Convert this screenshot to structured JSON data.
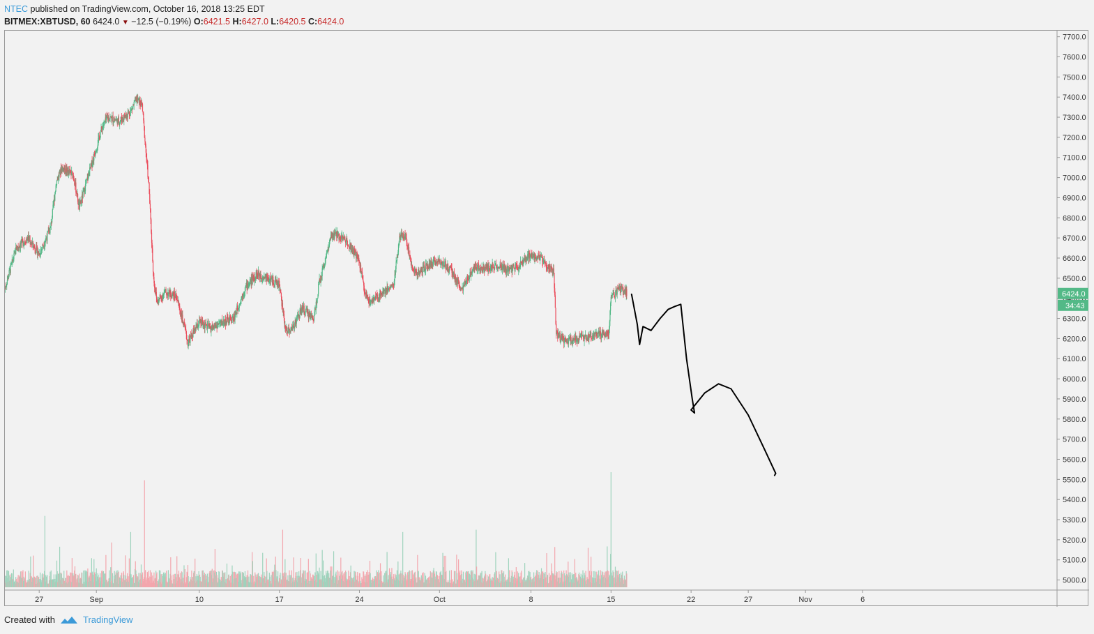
{
  "header": {
    "author": "NTEC",
    "published_text": "published on TradingView.com, October 16, 2018 13:25 EDT",
    "symbol": "BITMEX:XBTUSD, 60",
    "last": "6424.0",
    "change": "−12.5 (−0.19%)",
    "o_label": "O:",
    "o_value": "6421.5",
    "h_label": "H:",
    "h_value": "6427.0",
    "l_label": "L:",
    "l_value": "6420.5",
    "c_label": "C:",
    "c_value": "6424.0"
  },
  "footer": {
    "created_with": "Created with",
    "brand": "TradingView"
  },
  "colors": {
    "up": "#53b987",
    "down": "#eb4d5c",
    "volume_up": "#9fd3bd",
    "volume_down": "#f3a6ad",
    "price_badge": "#53b987",
    "drawing": "#000000"
  },
  "chart_data": {
    "type": "candlestick",
    "symbol": "BITMEX:XBTUSD",
    "interval": "60",
    "ylim": [
      4950,
      7730
    ],
    "y_ticks": [
      "7700.0",
      "7600.0",
      "7500.0",
      "7400.0",
      "7300.0",
      "7200.0",
      "7100.0",
      "7000.0",
      "6900.0",
      "6800.0",
      "6700.0",
      "6600.0",
      "6500.0",
      "6400.0",
      "6300.0",
      "6200.0",
      "6100.0",
      "6000.0",
      "5900.0",
      "5800.0",
      "5700.0",
      "5600.0",
      "5500.0",
      "5400.0",
      "5300.0",
      "5200.0",
      "5100.0",
      "5000.0"
    ],
    "x_tick_labels": [
      "27",
      "Sep",
      "10",
      "17",
      "24",
      "Oct",
      "8",
      "15",
      "22",
      "27",
      "Nov",
      "6"
    ],
    "x_tick_days": [
      -5,
      0,
      9,
      16,
      23,
      30,
      38,
      45,
      52,
      57,
      62,
      67
    ],
    "x_range_days": [
      -8,
      84
    ],
    "last_price_label": "6424.0",
    "countdown_label": "34:43",
    "price_path": [
      {
        "day": -8,
        "price": 6450
      },
      {
        "day": -7,
        "price": 6650
      },
      {
        "day": -6,
        "price": 6700
      },
      {
        "day": -5,
        "price": 6620
      },
      {
        "day": -4,
        "price": 6750
      },
      {
        "day": -3.5,
        "price": 6980
      },
      {
        "day": -3,
        "price": 7050
      },
      {
        "day": -2,
        "price": 7010
      },
      {
        "day": -1.5,
        "price": 6850
      },
      {
        "day": -1,
        "price": 6950
      },
      {
        "day": 0,
        "price": 7150
      },
      {
        "day": 0.5,
        "price": 7250
      },
      {
        "day": 1,
        "price": 7300
      },
      {
        "day": 2,
        "price": 7280
      },
      {
        "day": 3,
        "price": 7330
      },
      {
        "day": 3.5,
        "price": 7390
      },
      {
        "day": 4,
        "price": 7360
      },
      {
        "day": 4.3,
        "price": 7150
      },
      {
        "day": 4.6,
        "price": 6950
      },
      {
        "day": 5,
        "price": 6500
      },
      {
        "day": 5.3,
        "price": 6380
      },
      {
        "day": 6,
        "price": 6430
      },
      {
        "day": 7,
        "price": 6410
      },
      {
        "day": 7.5,
        "price": 6300
      },
      {
        "day": 8,
        "price": 6180
      },
      {
        "day": 9,
        "price": 6280
      },
      {
        "day": 10,
        "price": 6250
      },
      {
        "day": 11,
        "price": 6280
      },
      {
        "day": 12,
        "price": 6300
      },
      {
        "day": 13,
        "price": 6450
      },
      {
        "day": 14,
        "price": 6520
      },
      {
        "day": 15,
        "price": 6500
      },
      {
        "day": 16,
        "price": 6470
      },
      {
        "day": 16.5,
        "price": 6250
      },
      {
        "day": 17,
        "price": 6240
      },
      {
        "day": 18,
        "price": 6350
      },
      {
        "day": 19,
        "price": 6300
      },
      {
        "day": 19.5,
        "price": 6480
      },
      {
        "day": 20.5,
        "price": 6700
      },
      {
        "day": 21,
        "price": 6720
      },
      {
        "day": 22,
        "price": 6680
      },
      {
        "day": 23,
        "price": 6580
      },
      {
        "day": 23.5,
        "price": 6420
      },
      {
        "day": 24,
        "price": 6380
      },
      {
        "day": 25,
        "price": 6430
      },
      {
        "day": 26,
        "price": 6470
      },
      {
        "day": 26.5,
        "price": 6700
      },
      {
        "day": 27,
        "price": 6720
      },
      {
        "day": 27.5,
        "price": 6580
      },
      {
        "day": 28,
        "price": 6520
      },
      {
        "day": 29,
        "price": 6560
      },
      {
        "day": 30,
        "price": 6590
      },
      {
        "day": 31,
        "price": 6540
      },
      {
        "day": 32,
        "price": 6440
      },
      {
        "day": 33,
        "price": 6560
      },
      {
        "day": 34,
        "price": 6550
      },
      {
        "day": 35,
        "price": 6560
      },
      {
        "day": 36,
        "price": 6540
      },
      {
        "day": 37,
        "price": 6560
      },
      {
        "day": 38,
        "price": 6620
      },
      {
        "day": 39,
        "price": 6590
      },
      {
        "day": 40,
        "price": 6530
      },
      {
        "day": 40.2,
        "price": 6220
      },
      {
        "day": 41,
        "price": 6190
      },
      {
        "day": 42,
        "price": 6200
      },
      {
        "day": 43,
        "price": 6210
      },
      {
        "day": 44,
        "price": 6220
      },
      {
        "day": 44.8,
        "price": 6230
      },
      {
        "day": 45,
        "price": 6400
      },
      {
        "day": 45.5,
        "price": 6430
      },
      {
        "day": 46,
        "price": 6450
      },
      {
        "day": 46.4,
        "price": 6424
      }
    ],
    "volume_spikes": [
      {
        "day": 4.2,
        "volume": 0.93
      },
      {
        "day": 45.0,
        "volume": 1.0
      },
      {
        "day": 16.3,
        "volume": 0.5
      },
      {
        "day": 26.8,
        "volume": 0.48
      },
      {
        "day": 33.2,
        "volume": 0.5
      },
      {
        "day": -4.5,
        "volume": 0.62
      },
      {
        "day": 3.0,
        "volume": 0.48
      },
      {
        "day": 40.1,
        "volume": 0.35
      }
    ],
    "drawing_path": [
      {
        "day": 46.8,
        "price": 6420
      },
      {
        "day": 47.3,
        "price": 6270
      },
      {
        "day": 47.5,
        "price": 6170
      },
      {
        "day": 47.8,
        "price": 6260
      },
      {
        "day": 48.5,
        "price": 6240
      },
      {
        "day": 49.3,
        "price": 6300
      },
      {
        "day": 50.0,
        "price": 6345
      },
      {
        "day": 50.6,
        "price": 6360
      },
      {
        "day": 51.1,
        "price": 6370
      },
      {
        "day": 51.6,
        "price": 6100
      },
      {
        "day": 52.1,
        "price": 5900
      },
      {
        "day": 52.3,
        "price": 5830
      },
      {
        "day": 52.0,
        "price": 5845
      },
      {
        "day": 53.2,
        "price": 5930
      },
      {
        "day": 54.4,
        "price": 5975
      },
      {
        "day": 55.5,
        "price": 5950
      },
      {
        "day": 57.0,
        "price": 5820
      },
      {
        "day": 58.5,
        "price": 5640
      },
      {
        "day": 59.4,
        "price": 5530
      },
      {
        "day": 59.3,
        "price": 5520
      }
    ]
  }
}
